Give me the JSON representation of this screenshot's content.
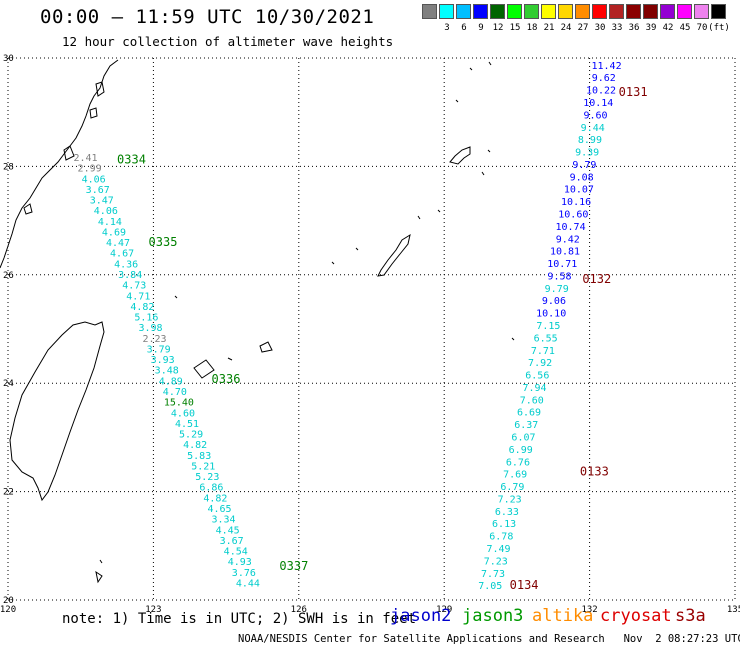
{
  "header": {
    "title": "00:00 — 11:59 UTC 10/30/2021",
    "subtitle": "12 hour collection of altimeter wave heights"
  },
  "legend": {
    "unit": "(ft)",
    "colors": [
      "#808080",
      "#00ffff",
      "#00bfff",
      "#0000ff",
      "#006400",
      "#00ff00",
      "#32cd32",
      "#ffff00",
      "#ffd700",
      "#ff8c00",
      "#ff0000",
      "#b22222",
      "#8b0000",
      "#800000",
      "#9400d3",
      "#ff00ff",
      "#ee82ee",
      "#000000"
    ],
    "labels": [
      "3",
      "6",
      "9",
      "12",
      "15",
      "18",
      "21",
      "24",
      "27",
      "30",
      "33",
      "36",
      "39",
      "42",
      "45",
      "70"
    ]
  },
  "map": {
    "lon_range": [
      120,
      135
    ],
    "lat_range": [
      20,
      30
    ],
    "lon_ticks": [
      "120",
      "123",
      "126",
      "129",
      "132",
      "135"
    ],
    "lat_ticks": [
      "30",
      "28",
      "26",
      "24",
      "22",
      "20"
    ]
  },
  "passes": [
    {
      "label": "0334",
      "color": "#008000",
      "lon": 122.25,
      "lat": 28.05
    },
    {
      "label": "0335",
      "color": "#008000",
      "lon": 122.9,
      "lat": 26.53
    },
    {
      "label": "0336",
      "color": "#008000",
      "lon": 124.2,
      "lat": 24.0
    },
    {
      "label": "0337",
      "color": "#008000",
      "lon": 125.6,
      "lat": 20.55
    },
    {
      "label": "0131",
      "color": "#800000",
      "lon": 132.6,
      "lat": 29.3
    },
    {
      "label": "0132",
      "color": "#800000",
      "lon": 131.85,
      "lat": 25.85
    },
    {
      "label": "0133",
      "color": "#800000",
      "lon": 131.8,
      "lat": 22.3
    },
    {
      "label": "0134",
      "color": "#800000",
      "lon": 130.35,
      "lat": 20.2
    }
  ],
  "tracks": [
    {
      "name": "t1",
      "lon_start": 121.6,
      "lon_end": 124.95,
      "lat_start": 28.1,
      "lat_end": 20.25,
      "color": "#00cccc",
      "values": [
        "2.41",
        "2.99",
        "4.06",
        "3.67",
        "3.47",
        "4.06",
        "4.14",
        "4.69",
        "4.47",
        "4.67",
        "4.36",
        "3.84",
        "4.73",
        "4.71",
        "4.82",
        "5.16",
        "3.98",
        "2.23",
        "3.79",
        "3.93",
        "3.48",
        "4.89",
        "4.70",
        "15.40",
        "4.60",
        "4.51",
        "5.29",
        "4.82",
        "5.83",
        "5.21",
        "5.23",
        "6.86",
        "4.82",
        "4.65",
        "3.34",
        "4.45",
        "3.67",
        "4.54",
        "4.93",
        "3.76",
        "4.44"
      ],
      "colors": {
        "0": "#808080",
        "1": "#808080",
        "17": "#808080",
        "23": "#008000"
      }
    },
    {
      "name": "t2",
      "lon_start": 132.35,
      "lon_end": 129.95,
      "lat_start": 29.8,
      "lat_end": 20.2,
      "color": "#00cccc",
      "values": [
        "11.42",
        "9.62",
        "10.22",
        "10.14",
        "9.60",
        "9.44",
        "8.99",
        "9.39",
        "9.79",
        "9.08",
        "10.07",
        "10.16",
        "10.60",
        "10.74",
        "9.42",
        "10.81",
        "10.71",
        "9.58",
        "9.79",
        "9.06",
        "10.10",
        "7.15",
        "6.55",
        "7.71",
        "7.92",
        "6.56",
        "7.94",
        "7.60",
        "6.69",
        "6.37",
        "6.07",
        "6.99",
        "6.76",
        "7.69",
        "6.79",
        "7.23",
        "6.33",
        "6.13",
        "6.78",
        "7.49",
        "7.23",
        "7.73",
        "7.05"
      ],
      "colors": {
        "0": "#0000ff",
        "1": "#0000ff",
        "2": "#0000ff",
        "3": "#0000ff",
        "4": "#0000ff",
        "8": "#0000ff",
        "9": "#0000ff",
        "10": "#0000ff",
        "11": "#0000ff",
        "12": "#0000ff",
        "13": "#0000ff",
        "14": "#0000ff",
        "15": "#0000ff",
        "16": "#0000ff",
        "17": "#0000ff",
        "19": "#0000ff",
        "20": "#0000ff"
      }
    }
  ],
  "footer": {
    "note": "note: 1) Time is in UTC; 2) SWH is in feet",
    "satellites": [
      {
        "name": "jason2",
        "color": "#0000cc"
      },
      {
        "name": "jason3",
        "color": "#009900"
      },
      {
        "name": "altika",
        "color": "#ff8c00"
      },
      {
        "name": "cryosat",
        "color": "#dd0000"
      },
      {
        "name": "s3a",
        "color": "#990000"
      }
    ],
    "credit": "NOAA/NESDIS Center for Satellite Applications and Research   Nov  2 08:27:23 UTC 2021"
  }
}
